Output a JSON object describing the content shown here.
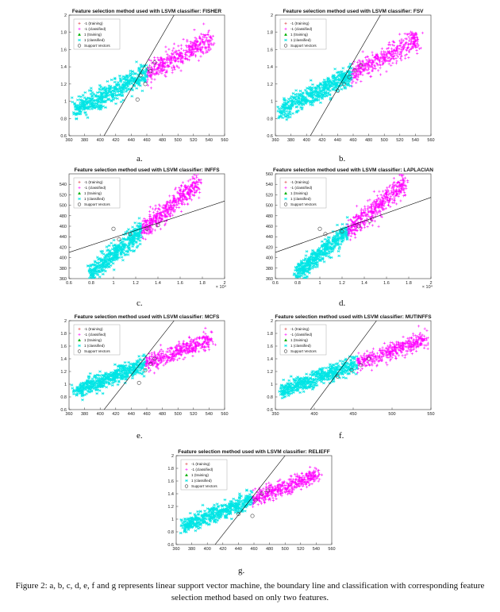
{
  "chart_data": [
    {
      "type": "scatter",
      "title": "Feature selection method used with LSVM classifier: FISHER",
      "panel_label": "a.",
      "xlim": [
        360,
        560
      ],
      "ylim": [
        0.6,
        2
      ],
      "xticks": [
        "360",
        "380",
        "400",
        "420",
        "440",
        "460",
        "480",
        "500",
        "520",
        "540",
        "560"
      ],
      "yticks": [
        "0.6",
        "0.8",
        "1",
        "1.2",
        "1.4",
        "1.6",
        "1.8",
        "2"
      ],
      "x_exponent": "",
      "trend": {
        "start": [
          370,
          0.9
        ],
        "end": [
          540,
          1.7
        ],
        "spread": 0.06
      },
      "split_x": 460,
      "boundary": [
        [
          405,
          0.6
        ],
        [
          495,
          2.0
        ]
      ],
      "support_vectors": [
        [
          448,
          1.02
        ],
        [
          458,
          1.2
        ],
        [
          465,
          1.35
        ],
        [
          470,
          1.45
        ],
        [
          452,
          1.3
        ],
        [
          462,
          1.38
        ]
      ],
      "legend": [
        "-1 (training)",
        "-1 (classified)",
        "1 (training)",
        "1 (classified)",
        "Support Vectors"
      ]
    },
    {
      "type": "scatter",
      "title": "Feature selection method used with LSVM classifier: FSV",
      "panel_label": "b.",
      "xlim": [
        360,
        560
      ],
      "ylim": [
        0.6,
        2
      ],
      "xticks": [
        "360",
        "380",
        "400",
        "420",
        "440",
        "460",
        "480",
        "500",
        "520",
        "540",
        "560"
      ],
      "yticks": [
        "0.6",
        "0.8",
        "1",
        "1.2",
        "1.4",
        "1.6",
        "1.8",
        "2"
      ],
      "x_exponent": "",
      "trend": {
        "start": [
          370,
          0.9
        ],
        "end": [
          540,
          1.7
        ],
        "spread": 0.06
      },
      "split_x": 458,
      "boundary": [
        [
          405,
          0.6
        ],
        [
          495,
          2.0
        ]
      ],
      "support_vectors": [
        [
          440,
          1.12
        ],
        [
          455,
          1.28
        ],
        [
          462,
          1.36
        ],
        [
          470,
          1.42
        ],
        [
          448,
          1.2
        ]
      ],
      "legend": [
        "-1 (training)",
        "-1 (classified)",
        "1 (training)",
        "1 (classified)",
        "Support Vectors"
      ]
    },
    {
      "type": "scatter",
      "title": "Feature selection method used with LSVM classifier: INFFS",
      "panel_label": "c.",
      "xlim": [
        0.6,
        2
      ],
      "ylim": [
        360,
        560
      ],
      "xticks": [
        "0.6",
        "0.8",
        "1",
        "1.2",
        "1.4",
        "1.6",
        "1.8",
        "2"
      ],
      "yticks": [
        "360",
        "380",
        "400",
        "420",
        "440",
        "460",
        "480",
        "500",
        "520",
        "540"
      ],
      "x_exponent": "× 10⁴",
      "trend": {
        "start": [
          0.8,
          370
        ],
        "end": [
          1.75,
          540
        ],
        "spread": 9
      },
      "split_x": 1.25,
      "boundary": [
        [
          0.6,
          410
        ],
        [
          2.0,
          508
        ]
      ],
      "support_vectors": [
        [
          1.0,
          455
        ],
        [
          1.05,
          435
        ],
        [
          1.15,
          445
        ],
        [
          1.3,
          455
        ],
        [
          1.4,
          462
        ]
      ],
      "legend": [
        "-1 (training)",
        "-1 (classified)",
        "1 (training)",
        "1 (classified)",
        "Support Vectors"
      ]
    },
    {
      "type": "scatter",
      "title": "Feature selection method used with LSVM classifier: LAPLACIAN",
      "panel_label": "d.",
      "xlim": [
        0.6,
        2
      ],
      "ylim": [
        360,
        560
      ],
      "xticks": [
        "0.6",
        "0.8",
        "1",
        "1.2",
        "1.4",
        "1.6",
        "1.8",
        "2"
      ],
      "yticks": [
        "360",
        "380",
        "400",
        "420",
        "440",
        "460",
        "480",
        "500",
        "520",
        "540",
        "560"
      ],
      "x_exponent": "× 10⁴",
      "trend": {
        "start": [
          0.8,
          370
        ],
        "end": [
          1.75,
          540
        ],
        "spread": 9
      },
      "split_x": 1.25,
      "boundary": [
        [
          0.6,
          410
        ],
        [
          2.0,
          515
        ]
      ],
      "support_vectors": [
        [
          1.0,
          455
        ],
        [
          1.05,
          445
        ],
        [
          1.2,
          450
        ],
        [
          1.35,
          460
        ],
        [
          1.45,
          470
        ]
      ],
      "legend": [
        "-1 (training)",
        "-1 (classified)",
        "1 (training)",
        "1 (classified)",
        "Support Vectors"
      ]
    },
    {
      "type": "scatter",
      "title": "Feature selection method used with LSVM classifier: MCFS",
      "panel_label": "e.",
      "xlim": [
        360,
        560
      ],
      "ylim": [
        0.6,
        2
      ],
      "xticks": [
        "360",
        "380",
        "400",
        "420",
        "440",
        "460",
        "480",
        "500",
        "520",
        "540",
        "560"
      ],
      "yticks": [
        "0.6",
        "0.8",
        "1",
        "1.2",
        "1.4",
        "1.6",
        "1.8",
        "2"
      ],
      "x_exponent": "",
      "trend": {
        "start": [
          370,
          0.9
        ],
        "end": [
          540,
          1.7
        ],
        "spread": 0.06
      },
      "split_x": 458,
      "boundary": [
        [
          405,
          0.6
        ],
        [
          495,
          2.0
        ]
      ],
      "support_vectors": [
        [
          450,
          1.02
        ],
        [
          458,
          1.22
        ],
        [
          465,
          1.32
        ],
        [
          470,
          1.4
        ]
      ],
      "legend": [
        "-1 (training)",
        "-1 (classified)",
        "1 (training)",
        "1 (classified)",
        "Support Vectors"
      ]
    },
    {
      "type": "scatter",
      "title": "Feature selection method used with LSVM classifier: MUTINFFS",
      "panel_label": "f.",
      "xlim": [
        350,
        550
      ],
      "ylim": [
        0.6,
        2
      ],
      "xticks": [
        "350",
        "400",
        "450",
        "500",
        "550"
      ],
      "yticks": [
        "0.6",
        "0.8",
        "1",
        "1.2",
        "1.4",
        "1.6",
        "1.8",
        "2"
      ],
      "x_exponent": "",
      "trend": {
        "start": [
          360,
          0.9
        ],
        "end": [
          540,
          1.7
        ],
        "spread": 0.06
      },
      "split_x": 455,
      "boundary": [
        [
          395,
          0.6
        ],
        [
          480,
          2.0
        ]
      ],
      "support_vectors": [
        [
          430,
          1.12
        ],
        [
          448,
          1.22
        ],
        [
          460,
          1.3
        ],
        [
          470,
          1.4
        ]
      ],
      "legend": [
        "-1 (training)",
        "-1 (classified)",
        "1 (training)",
        "1 (classified)",
        "Support Vectors"
      ]
    },
    {
      "type": "scatter",
      "title": "Feature selection method used with LSVM classifier: RELIEFF",
      "panel_label": "g.",
      "xlim": [
        360,
        560
      ],
      "ylim": [
        0.6,
        2
      ],
      "xticks": [
        "360",
        "380",
        "400",
        "420",
        "440",
        "460",
        "480",
        "500",
        "520",
        "540",
        "560"
      ],
      "yticks": [
        "0.6",
        "0.8",
        "1",
        "1.2",
        "1.4",
        "1.6",
        "1.8",
        "2"
      ],
      "x_exponent": "",
      "trend": {
        "start": [
          370,
          0.9
        ],
        "end": [
          540,
          1.7
        ],
        "spread": 0.06
      },
      "split_x": 458,
      "boundary": [
        [
          410,
          0.6
        ],
        [
          500,
          2.0
        ]
      ],
      "support_vectors": [
        [
          440,
          1.08
        ],
        [
          458,
          1.05
        ],
        [
          462,
          1.3
        ],
        [
          470,
          1.4
        ],
        [
          478,
          1.45
        ]
      ],
      "legend": [
        "-1 (training)",
        "-1 (classified)",
        "1 (training)",
        "1 (classified)",
        "Support Vectors"
      ]
    }
  ],
  "colors": {
    "negative_class": "#ff00ff",
    "positive_class": "#00e5e5",
    "positive_training": "#00b000",
    "support_vector": "#444444",
    "boundary": "#000000"
  },
  "caption": "Figure 2: a, b, c, d, e, f and g represents linear support vector machine, the boundary line and classification with corresponding feature selection method based on only two features."
}
